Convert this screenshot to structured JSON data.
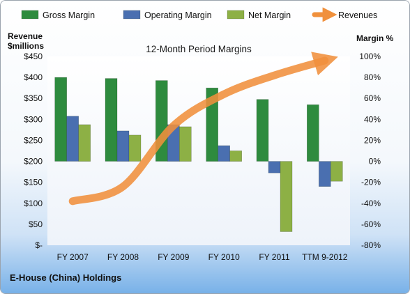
{
  "chart_data": {
    "type": "bar",
    "title": "12-Month Period Margins",
    "footer": "E-House (China) Holdings",
    "left_axis_label_line1": "Revenue",
    "left_axis_label_line2": "$millions",
    "right_axis_label": "Margin %",
    "categories": [
      "FY 2007",
      "FY 2008",
      "FY 2009",
      "FY 2010",
      "FY 2011",
      "TTM 9-2012"
    ],
    "left_axis": {
      "min": 0,
      "max": 450,
      "step": 50,
      "tick_labels": [
        "$-",
        "$50",
        "$100",
        "$150",
        "$200",
        "$250",
        "$300",
        "$350",
        "$400",
        "$450"
      ]
    },
    "right_axis": {
      "min": -80,
      "max": 100,
      "step": 20,
      "tick_labels": [
        "-80%",
        "-60%",
        "-40%",
        "-20%",
        "0%",
        "20%",
        "40%",
        "60%",
        "80%",
        "100%"
      ]
    },
    "series": [
      {
        "name": "Gross Margin",
        "type": "bar",
        "axis": "right",
        "color": "#2e8b3e",
        "values": [
          80,
          79,
          77,
          70,
          59,
          54
        ]
      },
      {
        "name": "Operating Margin",
        "type": "bar",
        "axis": "right",
        "color": "#4a6fb0",
        "values": [
          43,
          29,
          35,
          15,
          -11,
          -24
        ]
      },
      {
        "name": "Net Margin",
        "type": "bar",
        "axis": "right",
        "color": "#8db045",
        "values": [
          35,
          25,
          33,
          10,
          -67,
          -19
        ]
      },
      {
        "name": "Revenues",
        "type": "line",
        "axis": "left",
        "color": "#f0903c",
        "values": [
          105,
          140,
          285,
          360,
          405,
          440
        ]
      }
    ],
    "grid": false,
    "legend_position": "top"
  }
}
